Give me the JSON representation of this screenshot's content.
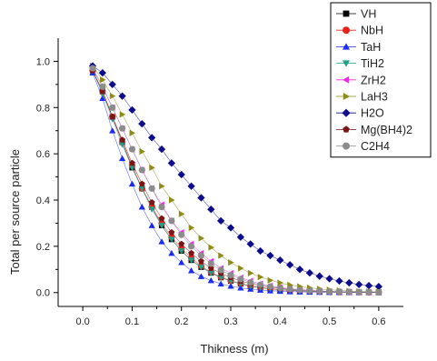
{
  "chart_data": {
    "type": "scatter",
    "title": "",
    "xlabel": "Thikness (m)",
    "ylabel": "Total per source particle",
    "xlim": [
      -0.05,
      0.65
    ],
    "ylim": [
      -0.06,
      1.1
    ],
    "xticks": [
      0.0,
      0.1,
      0.2,
      0.3,
      0.4,
      0.5,
      0.6
    ],
    "xtick_labels": [
      "0.0",
      "0.1",
      "0.2",
      "0.3",
      "0.4",
      "0.5",
      "0.6"
    ],
    "yticks": [
      0.0,
      0.2,
      0.4,
      0.6,
      0.8,
      1.0
    ],
    "ytick_labels": [
      "0.0",
      "0.2",
      "0.4",
      "0.6",
      "0.8",
      "1.0"
    ],
    "grid": false,
    "legend_position": "top-right",
    "connecting_lines": true,
    "x": [
      0.02,
      0.04,
      0.06,
      0.08,
      0.1,
      0.12,
      0.14,
      0.16,
      0.18,
      0.2,
      0.22,
      0.24,
      0.26,
      0.28,
      0.3,
      0.32,
      0.34,
      0.36,
      0.38,
      0.4,
      0.42,
      0.44,
      0.46,
      0.48,
      0.5,
      0.52,
      0.54,
      0.56,
      0.58,
      0.6
    ],
    "series": [
      {
        "name": "VH",
        "marker": "square",
        "color": "#000000",
        "values": [
          0.96,
          0.87,
          0.76,
          0.65,
          0.54,
          0.45,
          0.37,
          0.29,
          0.23,
          0.18,
          0.14,
          0.11,
          0.085,
          0.065,
          0.05,
          0.038,
          0.028,
          0.021,
          0.016,
          0.012,
          0.009,
          0.007,
          0.005,
          0.004,
          0.003,
          0.002,
          0.002,
          0.001,
          0.001,
          0.001
        ]
      },
      {
        "name": "NbH",
        "marker": "circle",
        "color": "#e8211b",
        "values": [
          0.96,
          0.87,
          0.76,
          0.65,
          0.55,
          0.45,
          0.37,
          0.3,
          0.24,
          0.19,
          0.15,
          0.115,
          0.088,
          0.067,
          0.051,
          0.039,
          0.029,
          0.022,
          0.017,
          0.012,
          0.009,
          0.007,
          0.005,
          0.004,
          0.003,
          0.002,
          0.002,
          0.001,
          0.001,
          0.001
        ]
      },
      {
        "name": "TaH",
        "marker": "triangle-up",
        "color": "#1a2cf0",
        "values": [
          0.95,
          0.84,
          0.7,
          0.58,
          0.47,
          0.37,
          0.29,
          0.22,
          0.17,
          0.13,
          0.095,
          0.07,
          0.052,
          0.038,
          0.028,
          0.02,
          0.015,
          0.011,
          0.008,
          0.006,
          0.004,
          0.003,
          0.002,
          0.0015,
          0.001,
          0.001,
          0.0005,
          0.0005,
          0.0003,
          0.0002
        ]
      },
      {
        "name": "TiH2",
        "marker": "triangle-down",
        "color": "#1f9f87",
        "values": [
          0.96,
          0.86,
          0.75,
          0.64,
          0.54,
          0.45,
          0.36,
          0.29,
          0.23,
          0.18,
          0.14,
          0.11,
          0.085,
          0.065,
          0.05,
          0.038,
          0.028,
          0.021,
          0.016,
          0.012,
          0.009,
          0.007,
          0.005,
          0.004,
          0.003,
          0.002,
          0.0015,
          0.001,
          0.001,
          0.001
        ]
      },
      {
        "name": "ZrH2",
        "marker": "triangle-left",
        "color": "#f028e8",
        "values": [
          0.97,
          0.89,
          0.8,
          0.71,
          0.62,
          0.53,
          0.45,
          0.38,
          0.31,
          0.26,
          0.21,
          0.17,
          0.135,
          0.105,
          0.083,
          0.064,
          0.05,
          0.038,
          0.029,
          0.022,
          0.017,
          0.013,
          0.01,
          0.007,
          0.005,
          0.004,
          0.003,
          0.002,
          0.002,
          0.001
        ]
      },
      {
        "name": "LaH3",
        "marker": "triangle-right",
        "color": "#8d8a17",
        "values": [
          0.98,
          0.92,
          0.85,
          0.77,
          0.69,
          0.61,
          0.54,
          0.46,
          0.4,
          0.34,
          0.28,
          0.235,
          0.195,
          0.16,
          0.13,
          0.105,
          0.084,
          0.067,
          0.053,
          0.042,
          0.033,
          0.026,
          0.02,
          0.016,
          0.012,
          0.009,
          0.007,
          0.005,
          0.004,
          0.003
        ]
      },
      {
        "name": "H2O",
        "marker": "diamond",
        "color": "#0c0c8c",
        "values": [
          0.98,
          0.95,
          0.9,
          0.85,
          0.79,
          0.73,
          0.67,
          0.62,
          0.56,
          0.51,
          0.46,
          0.41,
          0.36,
          0.31,
          0.28,
          0.24,
          0.21,
          0.18,
          0.16,
          0.14,
          0.12,
          0.1,
          0.085,
          0.071,
          0.06,
          0.05,
          0.042,
          0.035,
          0.03,
          0.026
        ]
      },
      {
        "name": "Mg(BH4)2",
        "marker": "pentagon",
        "color": "#7a1616",
        "values": [
          0.96,
          0.87,
          0.76,
          0.66,
          0.56,
          0.47,
          0.39,
          0.32,
          0.26,
          0.21,
          0.17,
          0.135,
          0.105,
          0.083,
          0.065,
          0.05,
          0.039,
          0.03,
          0.023,
          0.018,
          0.013,
          0.01,
          0.008,
          0.006,
          0.004,
          0.003,
          0.002,
          0.002,
          0.001,
          0.001
        ]
      },
      {
        "name": "C2H4",
        "marker": "circle",
        "color": "#8c8c8c",
        "values": [
          0.97,
          0.89,
          0.8,
          0.71,
          0.62,
          0.53,
          0.45,
          0.37,
          0.31,
          0.25,
          0.2,
          0.16,
          0.125,
          0.097,
          0.075,
          0.058,
          0.044,
          0.034,
          0.026,
          0.02,
          0.015,
          0.011,
          0.008,
          0.006,
          0.005,
          0.004,
          0.003,
          0.002,
          0.002,
          0.001
        ]
      }
    ]
  }
}
